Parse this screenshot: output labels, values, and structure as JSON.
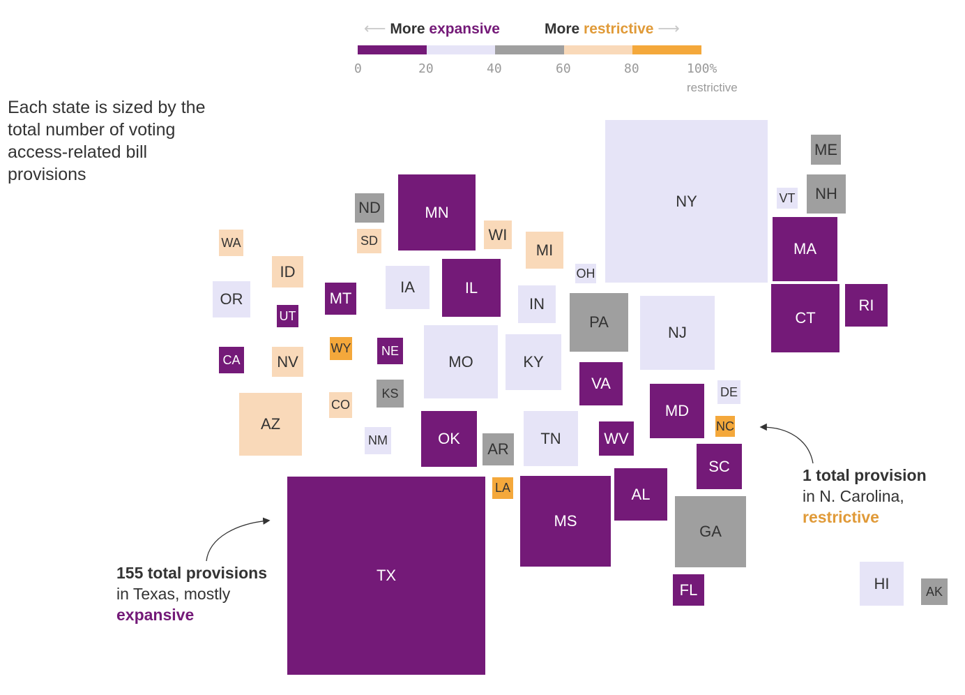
{
  "legend": {
    "left_prefix": "More",
    "left_word": "expansive",
    "right_prefix": "More",
    "right_word": "restrictive",
    "left_arrow": "⟵",
    "right_arrow": "⟶",
    "ticks": [
      "0",
      "20",
      "40",
      "60",
      "80",
      "100%"
    ],
    "tick_sub": "restrictive",
    "colors": [
      "#741a78",
      "#e6e4f7",
      "#9f9f9f",
      "#f9d9b9",
      "#f4a83b"
    ]
  },
  "intro": "Each state is sized by the total number of voting access-related bill provisions",
  "annotations": {
    "tx": {
      "line1": "155 total provisions",
      "line2": "in Texas, mostly",
      "line3": "expansive"
    },
    "nc": {
      "line1": "1 total provision",
      "line2": "in N. Carolina,",
      "line3": "restrictive"
    }
  },
  "colors": {
    "expansive": "#741a78",
    "light": "#e6e4f7",
    "gray": "#9f9f9f",
    "peach": "#f9d9b9",
    "orange": "#f4a83b",
    "restrictive_text": "#e09a38"
  },
  "states": [
    {
      "code": "WA",
      "cat": 3
    },
    {
      "code": "ID",
      "cat": 3
    },
    {
      "code": "OR",
      "cat": 1
    },
    {
      "code": "UT",
      "cat": 0
    },
    {
      "code": "MT",
      "cat": 0
    },
    {
      "code": "CA",
      "cat": 0
    },
    {
      "code": "NV",
      "cat": 3
    },
    {
      "code": "WY",
      "cat": 4
    },
    {
      "code": "AZ",
      "cat": 3
    },
    {
      "code": "CO",
      "cat": 3
    },
    {
      "code": "ND",
      "cat": 2
    },
    {
      "code": "SD",
      "cat": 3
    },
    {
      "code": "MN",
      "cat": 0
    },
    {
      "code": "IA",
      "cat": 1
    },
    {
      "code": "NE",
      "cat": 0
    },
    {
      "code": "KS",
      "cat": 2
    },
    {
      "code": "NM",
      "cat": 1
    },
    {
      "code": "MO",
      "cat": 1
    },
    {
      "code": "OK",
      "cat": 0
    },
    {
      "code": "TX",
      "cat": 0
    },
    {
      "code": "WI",
      "cat": 3
    },
    {
      "code": "IL",
      "cat": 0
    },
    {
      "code": "AR",
      "cat": 2
    },
    {
      "code": "LA",
      "cat": 4
    },
    {
      "code": "MI",
      "cat": 3
    },
    {
      "code": "IN",
      "cat": 1
    },
    {
      "code": "KY",
      "cat": 1
    },
    {
      "code": "TN",
      "cat": 1
    },
    {
      "code": "MS",
      "cat": 0
    },
    {
      "code": "OH",
      "cat": 1
    },
    {
      "code": "PA",
      "cat": 2
    },
    {
      "code": "VA",
      "cat": 0
    },
    {
      "code": "WV",
      "cat": 0
    },
    {
      "code": "AL",
      "cat": 0
    },
    {
      "code": "GA",
      "cat": 2
    },
    {
      "code": "FL",
      "cat": 0
    },
    {
      "code": "NY",
      "cat": 1
    },
    {
      "code": "NJ",
      "cat": 1
    },
    {
      "code": "MD",
      "cat": 0
    },
    {
      "code": "DE",
      "cat": 1
    },
    {
      "code": "NC",
      "cat": 4
    },
    {
      "code": "SC",
      "cat": 0
    },
    {
      "code": "VT",
      "cat": 1
    },
    {
      "code": "ME",
      "cat": 2
    },
    {
      "code": "NH",
      "cat": 2
    },
    {
      "code": "MA",
      "cat": 0
    },
    {
      "code": "CT",
      "cat": 0
    },
    {
      "code": "RI",
      "cat": 0
    },
    {
      "code": "HI",
      "cat": 1
    },
    {
      "code": "AK",
      "cat": 2
    }
  ]
}
